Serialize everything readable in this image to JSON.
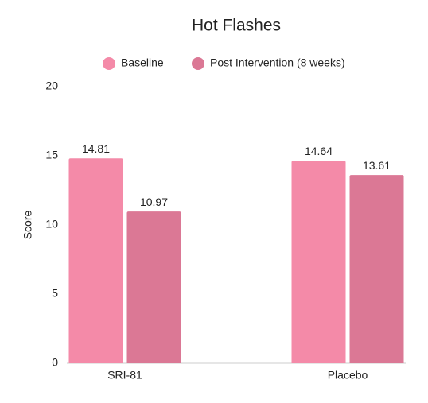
{
  "chart_data": {
    "type": "bar",
    "title": "Hot Flashes",
    "y_label": "Score",
    "categories": [
      "SRI-81",
      "Placebo"
    ],
    "series": [
      {
        "name": "Baseline",
        "color": "#f48aa8",
        "values": [
          14.81,
          14.64
        ]
      },
      {
        "name": "Post Intervention (8 weeks)",
        "color": "#db7895",
        "values": [
          10.97,
          13.61
        ]
      }
    ],
    "ylim": [
      0,
      20
    ],
    "yticks": [
      0,
      5,
      10,
      15,
      20
    ],
    "grid": false
  }
}
